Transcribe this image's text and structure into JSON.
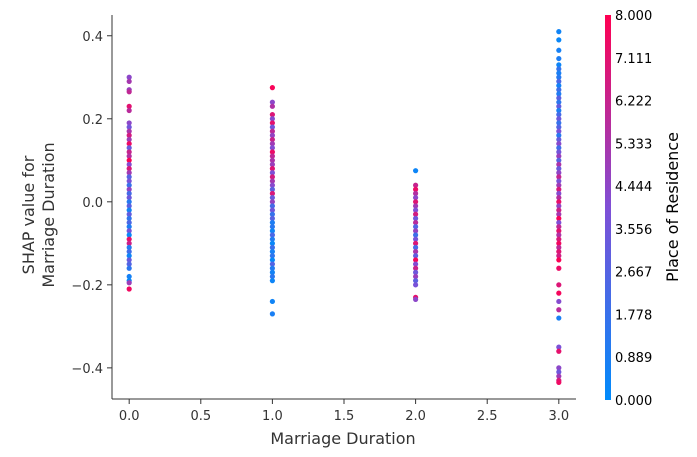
{
  "chart_data": {
    "type": "scatter",
    "title": "",
    "xlabel": "Marriage Duration",
    "ylabel_lines": [
      "SHAP value for",
      "Marriage Duration"
    ],
    "xlim": [
      -0.12,
      3.12
    ],
    "ylim": [
      -0.475,
      0.45
    ],
    "xticks": [
      0.0,
      0.5,
      1.0,
      1.5,
      2.0,
      2.5,
      3.0
    ],
    "xtick_labels": [
      "0.0",
      "0.5",
      "1.0",
      "1.5",
      "2.0",
      "2.5",
      "3.0"
    ],
    "yticks": [
      -0.4,
      -0.2,
      0.0,
      0.2,
      0.4
    ],
    "ytick_labels": [
      "−0.4",
      "−0.2",
      "0.0",
      "0.2",
      "0.4"
    ],
    "grid": false,
    "colorbar": {
      "label": "Place of Residence",
      "range": [
        0.0,
        8.0
      ],
      "ticks": [
        0.0,
        0.889,
        1.778,
        2.667,
        3.556,
        4.444,
        5.333,
        6.222,
        7.111,
        8.0
      ],
      "tick_labels": [
        "0.000",
        "0.889",
        "1.778",
        "2.667",
        "3.556",
        "4.444",
        "5.333",
        "6.222",
        "7.111",
        "8.000"
      ],
      "colors": [
        "#008bfb",
        "#7f4fd6",
        "#ff0052"
      ]
    },
    "points": [
      {
        "x": 0,
        "y": 0.3,
        "c": 4.4
      },
      {
        "x": 0,
        "y": 0.29,
        "c": 5.2
      },
      {
        "x": 0,
        "y": 0.27,
        "c": 4.8
      },
      {
        "x": 0,
        "y": 0.265,
        "c": 6.0
      },
      {
        "x": 0,
        "y": 0.23,
        "c": 7.1
      },
      {
        "x": 0,
        "y": 0.22,
        "c": 5.8
      },
      {
        "x": 0,
        "y": 0.19,
        "c": 4.4
      },
      {
        "x": 0,
        "y": 0.18,
        "c": 3.6
      },
      {
        "x": 0,
        "y": 0.17,
        "c": 5.3
      },
      {
        "x": 0,
        "y": 0.16,
        "c": 6.6
      },
      {
        "x": 0,
        "y": 0.15,
        "c": 4.9
      },
      {
        "x": 0,
        "y": 0.14,
        "c": 7.5
      },
      {
        "x": 0,
        "y": 0.13,
        "c": 3.2
      },
      {
        "x": 0,
        "y": 0.12,
        "c": 6.2
      },
      {
        "x": 0,
        "y": 0.11,
        "c": 5.6
      },
      {
        "x": 0,
        "y": 0.1,
        "c": 7.9
      },
      {
        "x": 0,
        "y": 0.09,
        "c": 4.2
      },
      {
        "x": 0,
        "y": 0.08,
        "c": 6.8
      },
      {
        "x": 0,
        "y": 0.07,
        "c": 5.1
      },
      {
        "x": 0,
        "y": 0.06,
        "c": 2.7
      },
      {
        "x": 0,
        "y": 0.05,
        "c": 3.8
      },
      {
        "x": 0,
        "y": 0.04,
        "c": 1.8
      },
      {
        "x": 0,
        "y": 0.03,
        "c": 4.6
      },
      {
        "x": 0,
        "y": 0.02,
        "c": 2.2
      },
      {
        "x": 0,
        "y": 0.01,
        "c": 3.4
      },
      {
        "x": 0,
        "y": 0.0,
        "c": 1.2
      },
      {
        "x": 0,
        "y": -0.01,
        "c": 2.9
      },
      {
        "x": 0,
        "y": -0.02,
        "c": 0.6
      },
      {
        "x": 0,
        "y": -0.03,
        "c": 3.1
      },
      {
        "x": 0,
        "y": -0.04,
        "c": 1.5
      },
      {
        "x": 0,
        "y": -0.05,
        "c": 2.4
      },
      {
        "x": 0,
        "y": -0.06,
        "c": 0.9
      },
      {
        "x": 0,
        "y": -0.07,
        "c": 3.7
      },
      {
        "x": 0,
        "y": -0.08,
        "c": 0.3
      },
      {
        "x": 0,
        "y": -0.09,
        "c": 7.2
      },
      {
        "x": 0,
        "y": -0.1,
        "c": 6.4
      },
      {
        "x": 0,
        "y": -0.11,
        "c": 1.1
      },
      {
        "x": 0,
        "y": -0.12,
        "c": 2.0
      },
      {
        "x": 0,
        "y": -0.13,
        "c": 0.4
      },
      {
        "x": 0,
        "y": -0.14,
        "c": 3.3
      },
      {
        "x": 0,
        "y": -0.15,
        "c": 2.6
      },
      {
        "x": 0,
        "y": -0.16,
        "c": 1.4
      },
      {
        "x": 0,
        "y": -0.18,
        "c": 0.7
      },
      {
        "x": 0,
        "y": -0.19,
        "c": 0.2
      },
      {
        "x": 0,
        "y": -0.195,
        "c": 4.9
      },
      {
        "x": 0,
        "y": -0.21,
        "c": 7.6
      },
      {
        "x": 1,
        "y": 0.275,
        "c": 7.8
      },
      {
        "x": 1,
        "y": 0.24,
        "c": 4.4
      },
      {
        "x": 1,
        "y": 0.23,
        "c": 5.5
      },
      {
        "x": 1,
        "y": 0.21,
        "c": 6.9
      },
      {
        "x": 1,
        "y": 0.2,
        "c": 4.2
      },
      {
        "x": 1,
        "y": 0.19,
        "c": 7.2
      },
      {
        "x": 1,
        "y": 0.18,
        "c": 3.6
      },
      {
        "x": 1,
        "y": 0.17,
        "c": 5.9
      },
      {
        "x": 1,
        "y": 0.16,
        "c": 4.6
      },
      {
        "x": 1,
        "y": 0.15,
        "c": 6.3
      },
      {
        "x": 1,
        "y": 0.14,
        "c": 5.0
      },
      {
        "x": 1,
        "y": 0.13,
        "c": 4.1
      },
      {
        "x": 1,
        "y": 0.12,
        "c": 7.4
      },
      {
        "x": 1,
        "y": 0.11,
        "c": 6.0
      },
      {
        "x": 1,
        "y": 0.1,
        "c": 5.4
      },
      {
        "x": 1,
        "y": 0.09,
        "c": 4.8
      },
      {
        "x": 1,
        "y": 0.08,
        "c": 7.0
      },
      {
        "x": 1,
        "y": 0.07,
        "c": 3.9
      },
      {
        "x": 1,
        "y": 0.06,
        "c": 6.6
      },
      {
        "x": 1,
        "y": 0.05,
        "c": 5.2
      },
      {
        "x": 1,
        "y": 0.04,
        "c": 4.3
      },
      {
        "x": 1,
        "y": 0.03,
        "c": 2.9
      },
      {
        "x": 1,
        "y": 0.02,
        "c": 6.8
      },
      {
        "x": 1,
        "y": 0.01,
        "c": 3.3
      },
      {
        "x": 1,
        "y": 0.0,
        "c": 4.7
      },
      {
        "x": 1,
        "y": -0.01,
        "c": 2.2
      },
      {
        "x": 1,
        "y": -0.02,
        "c": 3.6
      },
      {
        "x": 1,
        "y": -0.03,
        "c": 1.7
      },
      {
        "x": 1,
        "y": -0.04,
        "c": 2.8
      },
      {
        "x": 1,
        "y": -0.05,
        "c": 0.9
      },
      {
        "x": 1,
        "y": -0.06,
        "c": 1.3
      },
      {
        "x": 1,
        "y": -0.07,
        "c": 0.5
      },
      {
        "x": 1,
        "y": -0.08,
        "c": 2.4
      },
      {
        "x": 1,
        "y": -0.09,
        "c": 1.0
      },
      {
        "x": 1,
        "y": -0.1,
        "c": 0.3
      },
      {
        "x": 1,
        "y": -0.11,
        "c": 1.9
      },
      {
        "x": 1,
        "y": -0.12,
        "c": 0.7
      },
      {
        "x": 1,
        "y": -0.13,
        "c": 1.5
      },
      {
        "x": 1,
        "y": -0.14,
        "c": 0.2
      },
      {
        "x": 1,
        "y": -0.15,
        "c": 2.6
      },
      {
        "x": 1,
        "y": -0.16,
        "c": 1.1
      },
      {
        "x": 1,
        "y": -0.17,
        "c": 0.6
      },
      {
        "x": 1,
        "y": -0.18,
        "c": 1.4
      },
      {
        "x": 1,
        "y": -0.19,
        "c": 0.4
      },
      {
        "x": 1,
        "y": -0.24,
        "c": 0.5
      },
      {
        "x": 1,
        "y": -0.27,
        "c": 0.8
      },
      {
        "x": 2,
        "y": 0.075,
        "c": 0.4
      },
      {
        "x": 2,
        "y": 0.04,
        "c": 6.2
      },
      {
        "x": 2,
        "y": 0.03,
        "c": 7.4
      },
      {
        "x": 2,
        "y": 0.02,
        "c": 5.6
      },
      {
        "x": 2,
        "y": 0.01,
        "c": 4.4
      },
      {
        "x": 2,
        "y": 0.0,
        "c": 7.0
      },
      {
        "x": 2,
        "y": -0.01,
        "c": 5.1
      },
      {
        "x": 2,
        "y": -0.02,
        "c": 4.0
      },
      {
        "x": 2,
        "y": -0.03,
        "c": 6.6
      },
      {
        "x": 2,
        "y": -0.04,
        "c": 3.4
      },
      {
        "x": 2,
        "y": -0.05,
        "c": 5.8
      },
      {
        "x": 2,
        "y": -0.06,
        "c": 2.6
      },
      {
        "x": 2,
        "y": -0.07,
        "c": 4.7
      },
      {
        "x": 2,
        "y": -0.08,
        "c": 1.9
      },
      {
        "x": 2,
        "y": -0.09,
        "c": 3.7
      },
      {
        "x": 2,
        "y": -0.1,
        "c": 6.9
      },
      {
        "x": 2,
        "y": -0.11,
        "c": 2.3
      },
      {
        "x": 2,
        "y": -0.12,
        "c": 5.3
      },
      {
        "x": 2,
        "y": -0.13,
        "c": 3.0
      },
      {
        "x": 2,
        "y": -0.14,
        "c": 7.7
      },
      {
        "x": 2,
        "y": -0.15,
        "c": 4.1
      },
      {
        "x": 2,
        "y": -0.16,
        "c": 6.3
      },
      {
        "x": 2,
        "y": -0.17,
        "c": 3.5
      },
      {
        "x": 2,
        "y": -0.18,
        "c": 4.8
      },
      {
        "x": 2,
        "y": -0.19,
        "c": 2.9
      },
      {
        "x": 2,
        "y": -0.2,
        "c": 3.8
      },
      {
        "x": 2,
        "y": -0.23,
        "c": 7.2
      },
      {
        "x": 2,
        "y": -0.235,
        "c": 4.4
      },
      {
        "x": 3,
        "y": 0.41,
        "c": 0.5
      },
      {
        "x": 3,
        "y": 0.39,
        "c": 0.3
      },
      {
        "x": 3,
        "y": 0.365,
        "c": 0.7
      },
      {
        "x": 3,
        "y": 0.345,
        "c": 0.9
      },
      {
        "x": 3,
        "y": 0.33,
        "c": 0.4
      },
      {
        "x": 3,
        "y": 0.32,
        "c": 1.6
      },
      {
        "x": 3,
        "y": 0.31,
        "c": 0.8
      },
      {
        "x": 3,
        "y": 0.3,
        "c": 1.2
      },
      {
        "x": 3,
        "y": 0.29,
        "c": 2.4
      },
      {
        "x": 3,
        "y": 0.28,
        "c": 0.6
      },
      {
        "x": 3,
        "y": 0.27,
        "c": 1.9
      },
      {
        "x": 3,
        "y": 0.26,
        "c": 1.0
      },
      {
        "x": 3,
        "y": 0.25,
        "c": 2.8
      },
      {
        "x": 3,
        "y": 0.24,
        "c": 1.4
      },
      {
        "x": 3,
        "y": 0.23,
        "c": 3.1
      },
      {
        "x": 3,
        "y": 0.22,
        "c": 0.9
      },
      {
        "x": 3,
        "y": 0.21,
        "c": 2.2
      },
      {
        "x": 3,
        "y": 0.2,
        "c": 3.4
      },
      {
        "x": 3,
        "y": 0.19,
        "c": 1.7
      },
      {
        "x": 3,
        "y": 0.18,
        "c": 2.6
      },
      {
        "x": 3,
        "y": 0.17,
        "c": 3.9
      },
      {
        "x": 3,
        "y": 0.16,
        "c": 1.3
      },
      {
        "x": 3,
        "y": 0.15,
        "c": 3.2
      },
      {
        "x": 3,
        "y": 0.14,
        "c": 4.3
      },
      {
        "x": 3,
        "y": 0.13,
        "c": 2.0
      },
      {
        "x": 3,
        "y": 0.12,
        "c": 3.6
      },
      {
        "x": 3,
        "y": 0.11,
        "c": 4.8
      },
      {
        "x": 3,
        "y": 0.1,
        "c": 2.7
      },
      {
        "x": 3,
        "y": 0.09,
        "c": 5.4
      },
      {
        "x": 3,
        "y": 0.08,
        "c": 3.3
      },
      {
        "x": 3,
        "y": 0.07,
        "c": 4.5
      },
      {
        "x": 3,
        "y": 0.06,
        "c": 6.1
      },
      {
        "x": 3,
        "y": 0.05,
        "c": 3.8
      },
      {
        "x": 3,
        "y": 0.04,
        "c": 5.0
      },
      {
        "x": 3,
        "y": 0.03,
        "c": 6.7
      },
      {
        "x": 3,
        "y": 0.02,
        "c": 4.2
      },
      {
        "x": 3,
        "y": 0.01,
        "c": 5.7
      },
      {
        "x": 3,
        "y": 0.0,
        "c": 7.3
      },
      {
        "x": 3,
        "y": -0.01,
        "c": 4.6
      },
      {
        "x": 3,
        "y": -0.02,
        "c": 6.4
      },
      {
        "x": 3,
        "y": -0.03,
        "c": 5.2
      },
      {
        "x": 3,
        "y": -0.04,
        "c": 7.8
      },
      {
        "x": 3,
        "y": -0.05,
        "c": 4.0
      },
      {
        "x": 3,
        "y": -0.06,
        "c": 6.0
      },
      {
        "x": 3,
        "y": -0.07,
        "c": 7.1
      },
      {
        "x": 3,
        "y": -0.08,
        "c": 5.5
      },
      {
        "x": 3,
        "y": -0.09,
        "c": 6.8
      },
      {
        "x": 3,
        "y": -0.1,
        "c": 7.6
      },
      {
        "x": 3,
        "y": -0.11,
        "c": 5.9
      },
      {
        "x": 3,
        "y": -0.12,
        "c": 7.0
      },
      {
        "x": 3,
        "y": -0.13,
        "c": 6.5
      },
      {
        "x": 3,
        "y": -0.14,
        "c": 7.9
      },
      {
        "x": 3,
        "y": -0.16,
        "c": 7.4
      },
      {
        "x": 3,
        "y": -0.2,
        "c": 6.9
      },
      {
        "x": 3,
        "y": -0.22,
        "c": 7.7
      },
      {
        "x": 3,
        "y": -0.24,
        "c": 4.2
      },
      {
        "x": 3,
        "y": -0.26,
        "c": 5.8
      },
      {
        "x": 3,
        "y": -0.28,
        "c": 0.8
      },
      {
        "x": 3,
        "y": -0.35,
        "c": 3.9
      },
      {
        "x": 3,
        "y": -0.36,
        "c": 7.2
      },
      {
        "x": 3,
        "y": -0.4,
        "c": 4.4
      },
      {
        "x": 3,
        "y": -0.41,
        "c": 3.5
      },
      {
        "x": 3,
        "y": -0.42,
        "c": 5.0
      },
      {
        "x": 3,
        "y": -0.43,
        "c": 6.6
      },
      {
        "x": 3,
        "y": -0.435,
        "c": 7.5
      }
    ]
  }
}
